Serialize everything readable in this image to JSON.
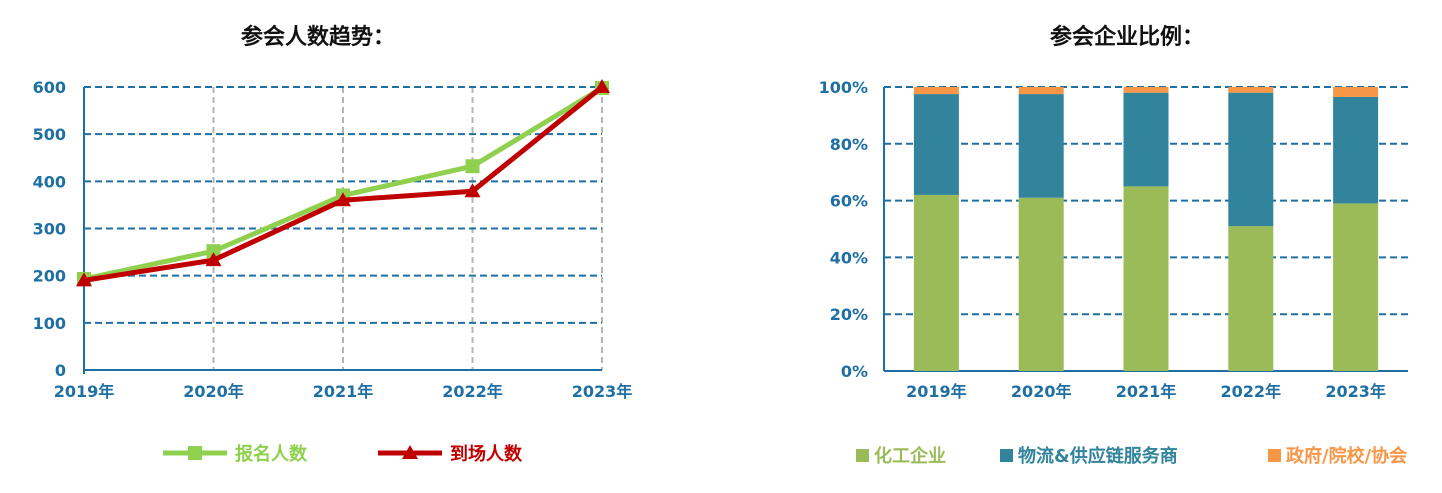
{
  "chart_data": [
    {
      "type": "line",
      "title": "参会人数趋势：",
      "categories": [
        "2019年",
        "2020年",
        "2021年",
        "2022年",
        "2023年"
      ],
      "ylim": [
        0,
        600
      ],
      "yticks": [
        "0",
        "100",
        "200",
        "300",
        "400",
        "500",
        "600"
      ],
      "grid": true,
      "legend_position": "bottom",
      "series": [
        {
          "name": "报名人数",
          "values": [
            193,
            252,
            370,
            432,
            598
          ],
          "color": "#8fd14f",
          "marker": "square"
        },
        {
          "name": "到场人数",
          "values": [
            190,
            233,
            360,
            379,
            600
          ],
          "color": "#c00000",
          "marker": "triangle"
        }
      ]
    },
    {
      "type": "bar",
      "stacked": true,
      "title": "参会企业比例：",
      "categories": [
        "2019年",
        "2020年",
        "2021年",
        "2022年",
        "2023年"
      ],
      "ylim": [
        0,
        100
      ],
      "yticks": [
        "0%",
        "20%",
        "40%",
        "60%",
        "80%",
        "100%"
      ],
      "grid": true,
      "legend_position": "bottom",
      "series": [
        {
          "name": "化工企业",
          "values": [
            62,
            61,
            65,
            51,
            59
          ],
          "color": "#9bbb59"
        },
        {
          "name": "物流&供应链服务商",
          "values": [
            35.5,
            36.5,
            33,
            47,
            37.5
          ],
          "color": "#31849b"
        },
        {
          "name": "政府/院校/协会",
          "values": [
            2.5,
            2.5,
            2,
            2,
            3.5
          ],
          "color": "#f79646"
        }
      ]
    }
  ]
}
